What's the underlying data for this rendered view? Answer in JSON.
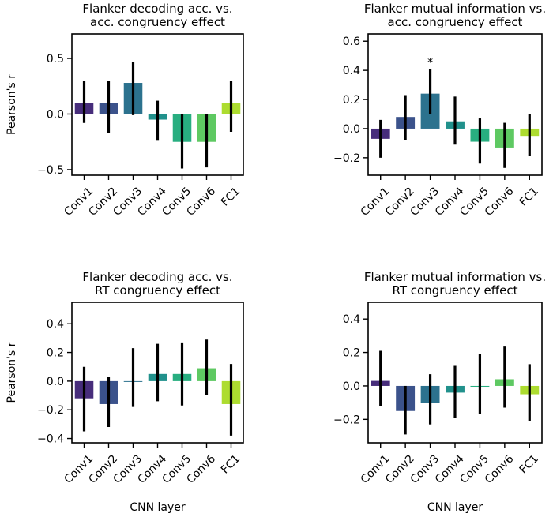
{
  "chart_data": [
    {
      "type": "bar",
      "title": [
        "Flanker decoding acc. vs.",
        "acc. congruency effect"
      ],
      "xlabel": "",
      "ylabel": "Pearson's r",
      "categories": [
        "Conv1",
        "Conv2",
        "Conv3",
        "Conv4",
        "Conv5",
        "Conv6",
        "FC1"
      ],
      "values": [
        0.1,
        0.1,
        0.28,
        -0.05,
        -0.25,
        -0.25,
        0.1
      ],
      "error_low": [
        -0.08,
        -0.17,
        -0.01,
        -0.24,
        -0.49,
        -0.48,
        -0.16
      ],
      "error_high": [
        0.3,
        0.3,
        0.47,
        0.12,
        0.0,
        0.0,
        0.3
      ],
      "annotations": [],
      "yticks": [
        -0.5,
        0.0,
        0.5
      ],
      "ytick_labels": [
        "−0.5",
        "0.0",
        "0.5"
      ],
      "ylim": [
        -0.55,
        0.72
      ]
    },
    {
      "type": "bar",
      "title": [
        "Flanker mutual information vs.",
        "acc. congruency effect"
      ],
      "xlabel": "",
      "ylabel": "",
      "categories": [
        "Conv1",
        "Conv2",
        "Conv3",
        "Conv4",
        "Conv5",
        "Conv6",
        "FC1"
      ],
      "values": [
        -0.07,
        0.08,
        0.24,
        0.05,
        -0.09,
        -0.13,
        -0.05
      ],
      "error_low": [
        -0.2,
        -0.08,
        0.1,
        -0.11,
        -0.24,
        -0.27,
        -0.19
      ],
      "error_high": [
        0.06,
        0.23,
        0.41,
        0.22,
        0.07,
        0.04,
        0.1
      ],
      "annotations": [
        {
          "category": "Conv3",
          "text": "*"
        }
      ],
      "yticks": [
        -0.2,
        0.0,
        0.2,
        0.4,
        0.6
      ],
      "ytick_labels": [
        "−0.2",
        "0.0",
        "0.2",
        "0.4",
        "0.6"
      ],
      "ylim": [
        -0.32,
        0.65
      ]
    },
    {
      "type": "bar",
      "title": [
        "Flanker decoding acc. vs.",
        "RT congruency effect"
      ],
      "xlabel": "CNN layer",
      "ylabel": "Pearson's r",
      "categories": [
        "Conv1",
        "Conv2",
        "Conv3",
        "Conv4",
        "Conv5",
        "Conv6",
        "FC1"
      ],
      "values": [
        -0.12,
        -0.16,
        0.0,
        0.05,
        0.05,
        0.09,
        -0.16
      ],
      "error_low": [
        -0.35,
        -0.32,
        -0.18,
        -0.14,
        -0.17,
        -0.1,
        -0.38
      ],
      "error_high": [
        0.1,
        0.03,
        0.23,
        0.26,
        0.27,
        0.29,
        0.12
      ],
      "annotations": [],
      "yticks": [
        -0.4,
        -0.2,
        0.0,
        0.2,
        0.4
      ],
      "ytick_labels": [
        "−0.4",
        "−0.2",
        "0.0",
        "0.2",
        "0.4"
      ],
      "ylim": [
        -0.43,
        0.55
      ]
    },
    {
      "type": "bar",
      "title": [
        "Flanker mutual information vs.",
        "RT congruency effect"
      ],
      "xlabel": "CNN layer",
      "ylabel": "",
      "categories": [
        "Conv1",
        "Conv2",
        "Conv3",
        "Conv4",
        "Conv5",
        "Conv6",
        "FC1"
      ],
      "values": [
        0.03,
        -0.15,
        -0.1,
        -0.04,
        -0.005,
        0.04,
        -0.05
      ],
      "error_low": [
        -0.12,
        -0.29,
        -0.23,
        -0.19,
        -0.17,
        -0.13,
        -0.21
      ],
      "error_high": [
        0.21,
        0.0,
        0.07,
        0.12,
        0.19,
        0.24,
        0.13
      ],
      "annotations": [],
      "yticks": [
        -0.2,
        0.0,
        0.2,
        0.4
      ],
      "ytick_labels": [
        "−0.2",
        "0.0",
        "0.2",
        "0.4"
      ],
      "ylim": [
        -0.34,
        0.5
      ]
    }
  ],
  "colors": [
    "#472d7b",
    "#3b528b",
    "#2c728e",
    "#21918c",
    "#28ae80",
    "#5ec962",
    "#addc30"
  ]
}
